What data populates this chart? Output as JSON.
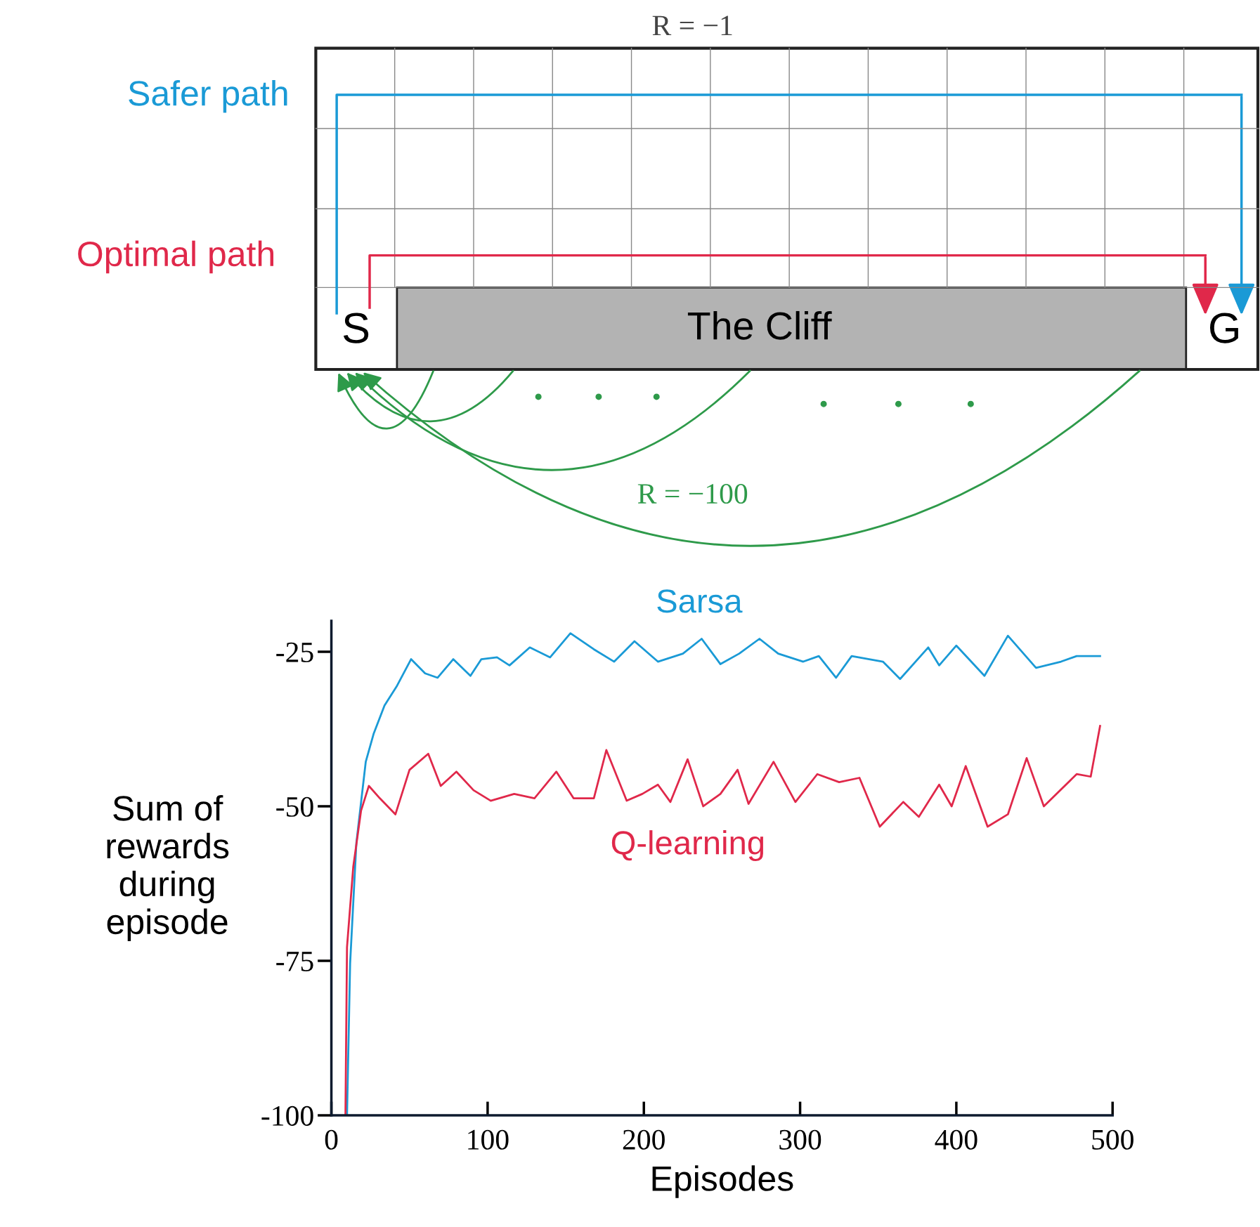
{
  "chart_data": {
    "type": "line",
    "xlabel": "Episodes",
    "ylabel": "Sum of\nrewards\nduring\nepisode",
    "xlim": [
      0,
      500
    ],
    "ylim": [
      -100,
      -20
    ],
    "xticks": [
      0,
      100,
      200,
      300,
      400,
      500
    ],
    "yticks": [
      -100,
      -75,
      -50,
      -25
    ],
    "legend": false,
    "grid": false,
    "annotations": [
      "R = −1",
      "Safer path",
      "Optimal path",
      "S",
      "The Cliff",
      "G",
      "R = −100"
    ],
    "series": [
      {
        "name": "Sarsa",
        "color": "#1a9ad6",
        "x": [
          10,
          12,
          16,
          22,
          27,
          34,
          42,
          51,
          60,
          68,
          78,
          89,
          96,
          106,
          114,
          127,
          140,
          153,
          168,
          181,
          194,
          209,
          225,
          237,
          249,
          261,
          274,
          286,
          302,
          312,
          323,
          333,
          353,
          364,
          382,
          389,
          400,
          418,
          433,
          451,
          467,
          477,
          492
        ],
        "values": [
          -100,
          -75.4,
          -55.9,
          -42.8,
          -38.3,
          -33.7,
          -30.5,
          -26.2,
          -28.5,
          -29.2,
          -26.2,
          -28.9,
          -26.2,
          -25.9,
          -27.2,
          -24.3,
          -25.9,
          -22,
          -24.6,
          -26.6,
          -23.3,
          -26.6,
          -25.3,
          -22.9,
          -27,
          -25.3,
          -22.9,
          -25.3,
          -26.6,
          -25.7,
          -29.2,
          -25.7,
          -26.6,
          -29.4,
          -24.3,
          -27.2,
          -24,
          -28.9,
          -22.4,
          -27.6,
          -26.6,
          -25.7,
          -25.7
        ]
      },
      {
        "name": "Q-learning",
        "color": "#e0284a",
        "x": [
          9,
          10,
          14,
          19,
          24,
          31,
          41,
          50,
          62,
          70,
          80,
          91,
          102,
          117,
          130,
          144,
          155,
          168,
          176,
          189,
          199,
          209,
          217,
          228,
          238,
          249,
          260,
          267,
          283,
          297,
          311,
          325,
          338,
          351,
          366,
          376,
          389,
          397,
          406,
          420,
          433,
          445,
          456,
          477,
          486,
          492
        ],
        "values": [
          -100,
          -72.8,
          -59.8,
          -50.7,
          -46.7,
          -48.7,
          -51.3,
          -44.1,
          -41.5,
          -46.7,
          -44.4,
          -47.4,
          -49.1,
          -48,
          -48.7,
          -44.4,
          -48.7,
          -48.7,
          -40.9,
          -49.1,
          -48,
          -46.5,
          -49.3,
          -42.4,
          -50,
          -48,
          -44.1,
          -49.6,
          -42.8,
          -49.3,
          -44.8,
          -46.1,
          -45.4,
          -53.3,
          -49.3,
          -51.7,
          -46.5,
          -50,
          -43.5,
          -53.3,
          -51.3,
          -42.2,
          -50,
          -44.8,
          -45.2,
          -37
        ]
      }
    ]
  }
}
